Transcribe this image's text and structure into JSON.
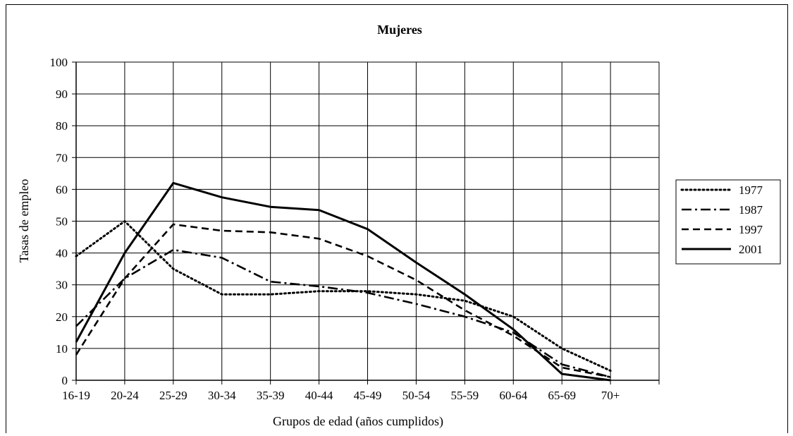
{
  "chart_data": {
    "type": "line",
    "title": "Mujeres",
    "xlabel": "Grupos de edad (años cumplidos)",
    "ylabel": "Tasas de empleo",
    "categories": [
      "16-19",
      "20-24",
      "25-29",
      "30-34",
      "35-39",
      "40-44",
      "45-49",
      "50-54",
      "55-59",
      "60-64",
      "65-69",
      "70+"
    ],
    "ylim": [
      0,
      100
    ],
    "yticks": [
      0,
      10,
      20,
      30,
      40,
      50,
      60,
      70,
      80,
      90,
      100
    ],
    "grid": true,
    "legend_position": "right",
    "series": [
      {
        "name": "1977",
        "style": "dotted",
        "values": [
          39,
          50,
          35,
          27,
          27,
          28,
          28,
          27,
          25,
          20,
          10,
          3
        ]
      },
      {
        "name": "1987",
        "style": "dash-dot",
        "values": [
          17,
          32,
          41,
          38.5,
          31,
          29.5,
          27.5,
          24,
          20,
          15,
          5,
          1
        ]
      },
      {
        "name": "1997",
        "style": "dashed",
        "values": [
          8,
          32,
          49,
          47,
          46.5,
          44.5,
          39,
          31.5,
          22,
          14,
          4,
          1
        ]
      },
      {
        "name": "2001",
        "style": "solid",
        "values": [
          12,
          40,
          62,
          57.5,
          54.5,
          53.5,
          47.5,
          37,
          27,
          16,
          2,
          0
        ]
      }
    ]
  }
}
